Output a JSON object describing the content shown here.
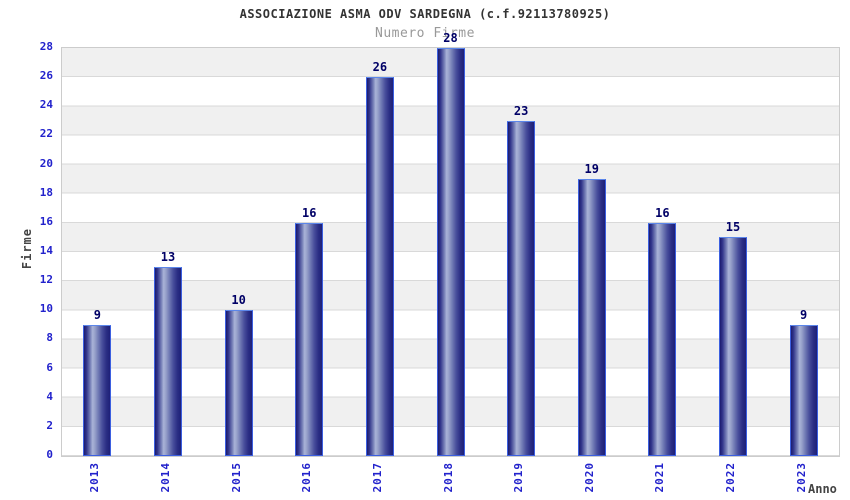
{
  "title": "ASSOCIAZIONE ASMA ODV SARDEGNA (c.f.92113780925)",
  "subtitle": "Numero Firme",
  "chart_data": {
    "type": "bar",
    "title": "ASSOCIAZIONE ASMA ODV SARDEGNA (c.f.92113780925)",
    "subtitle": "Numero Firme",
    "categories": [
      "2013",
      "2014",
      "2015",
      "2016",
      "2017",
      "2018",
      "2019",
      "2020",
      "2021",
      "2022",
      "2023"
    ],
    "values": [
      9,
      13,
      10,
      16,
      26,
      28,
      23,
      19,
      16,
      15,
      9
    ],
    "xlabel": "Anno",
    "ylabel": "Firme",
    "ylim": [
      0,
      28
    ],
    "ytick_step": 2,
    "yticks": [
      0,
      2,
      4,
      6,
      8,
      10,
      12,
      14,
      16,
      18,
      20,
      22,
      24,
      26,
      28
    ],
    "grid": "horizontal gridlines every 2 units with alternating white/gray bands",
    "legend_position": "none",
    "colors": {
      "tick_label": "#2222cc",
      "value_label": "#000066",
      "bar_dark": "#1b1b6e",
      "bar_highlight": "#aab3d8",
      "bar_border": "#3b5fe0",
      "band_gray": "#f0f0f0",
      "band_white": "#ffffff",
      "grid_line": "#d9d9d9",
      "plot_border": "#cccccc",
      "title_color": "#333333",
      "subtitle_color": "#999999",
      "axis_title_color": "#444444",
      "background": "#ffffff"
    }
  }
}
